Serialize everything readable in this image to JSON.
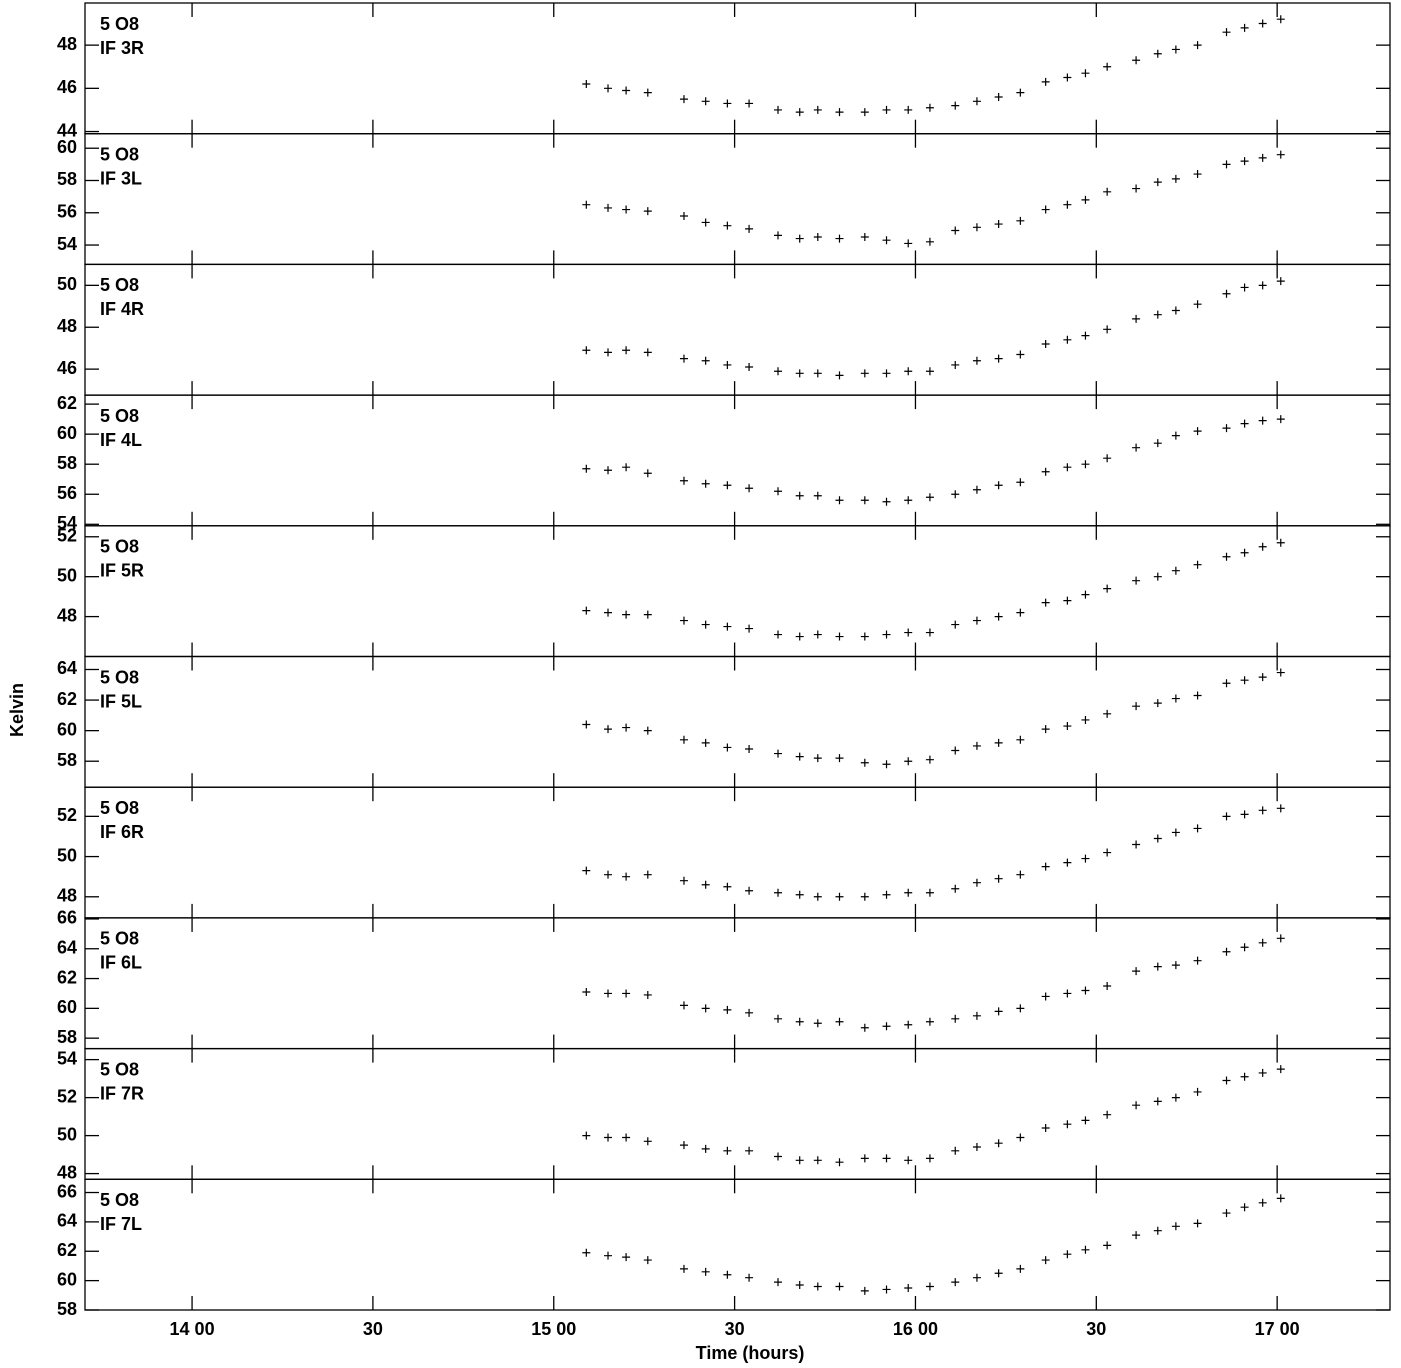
{
  "chart_data": {
    "type": "scatter",
    "xlabel": "Time (hours)",
    "ylabel": "Kelvin",
    "xlim": [
      13.704,
      17.312
    ],
    "xticks": [
      {
        "value": 14,
        "label": "14 00"
      },
      {
        "value": 14.5,
        "label": "30"
      },
      {
        "value": 15,
        "label": "15 00"
      },
      {
        "value": 15.5,
        "label": "30"
      },
      {
        "value": 16,
        "label": "16 00"
      },
      {
        "value": 16.5,
        "label": "30"
      },
      {
        "value": 17,
        "label": "17 00"
      }
    ],
    "x": [
      15.09,
      15.15,
      15.2,
      15.26,
      15.36,
      15.42,
      15.48,
      15.54,
      15.62,
      15.68,
      15.73,
      15.79,
      15.86,
      15.92,
      15.98,
      16.04,
      16.11,
      16.17,
      16.23,
      16.29,
      16.36,
      16.42,
      16.47,
      16.53,
      16.61,
      16.67,
      16.72,
      16.78,
      16.86,
      16.91,
      16.96,
      17.01
    ],
    "panels": [
      {
        "source": "5 O8",
        "name": "IF 3R",
        "ylim": [
          43.9,
          49.95
        ],
        "yticks": [
          44,
          46,
          48
        ],
        "values": [
          46.2,
          46.0,
          45.9,
          45.8,
          45.5,
          45.4,
          45.3,
          45.3,
          45.0,
          44.9,
          45.0,
          44.9,
          44.9,
          45.0,
          45.0,
          45.1,
          45.2,
          45.4,
          45.6,
          45.8,
          46.3,
          46.5,
          46.7,
          47.0,
          47.3,
          47.6,
          47.8,
          48.0,
          48.6,
          48.8,
          49.0,
          49.2
        ]
      },
      {
        "source": "5 O8",
        "name": "IF 3L",
        "ylim": [
          52.8,
          60.9
        ],
        "yticks": [
          54,
          56,
          58,
          60
        ],
        "values": [
          56.5,
          56.3,
          56.2,
          56.1,
          55.8,
          55.4,
          55.2,
          55.0,
          54.6,
          54.4,
          54.5,
          54.4,
          54.5,
          54.3,
          54.1,
          54.2,
          54.9,
          55.1,
          55.3,
          55.5,
          56.2,
          56.5,
          56.8,
          57.3,
          57.5,
          57.9,
          58.1,
          58.4,
          59.0,
          59.2,
          59.4,
          59.6
        ]
      },
      {
        "source": "5 O8",
        "name": "IF 4R",
        "ylim": [
          44.76,
          51.0
        ],
        "yticks": [
          46,
          48,
          50
        ],
        "values": [
          46.9,
          46.8,
          46.9,
          46.8,
          46.5,
          46.4,
          46.2,
          46.1,
          45.9,
          45.8,
          45.8,
          45.7,
          45.8,
          45.8,
          45.9,
          45.9,
          46.2,
          46.4,
          46.5,
          46.7,
          47.2,
          47.4,
          47.6,
          47.9,
          48.4,
          48.6,
          48.8,
          49.1,
          49.6,
          49.9,
          50.0,
          50.2
        ]
      },
      {
        "source": "5 O8",
        "name": "IF 4L",
        "ylim": [
          53.9,
          62.6
        ],
        "yticks": [
          54,
          56,
          58,
          60,
          62
        ],
        "values": [
          57.7,
          57.6,
          57.8,
          57.4,
          56.9,
          56.7,
          56.6,
          56.4,
          56.2,
          55.9,
          55.9,
          55.6,
          55.6,
          55.5,
          55.6,
          55.8,
          56.0,
          56.3,
          56.6,
          56.8,
          57.5,
          57.8,
          58.0,
          58.4,
          59.1,
          59.4,
          59.9,
          60.2,
          60.4,
          60.7,
          60.9,
          61.0
        ]
      },
      {
        "source": "5 O8",
        "name": "IF 5R",
        "ylim": [
          46.0,
          52.55
        ],
        "yticks": [
          48,
          50,
          52
        ],
        "values": [
          48.3,
          48.2,
          48.1,
          48.1,
          47.8,
          47.6,
          47.5,
          47.4,
          47.1,
          47.0,
          47.1,
          47.0,
          47.0,
          47.1,
          47.2,
          47.2,
          47.6,
          47.8,
          48.0,
          48.2,
          48.7,
          48.8,
          49.1,
          49.4,
          49.8,
          50.0,
          50.3,
          50.6,
          51.0,
          51.2,
          51.5,
          51.7
        ]
      },
      {
        "source": "5 O8",
        "name": "IF 5L",
        "ylim": [
          56.3,
          64.85
        ],
        "yticks": [
          58,
          60,
          62,
          64
        ],
        "values": [
          60.4,
          60.1,
          60.2,
          60.0,
          59.4,
          59.2,
          58.9,
          58.8,
          58.5,
          58.3,
          58.2,
          58.2,
          57.9,
          57.8,
          58.0,
          58.1,
          58.7,
          59.0,
          59.2,
          59.4,
          60.1,
          60.3,
          60.7,
          61.1,
          61.6,
          61.8,
          62.1,
          62.3,
          63.1,
          63.3,
          63.5,
          63.8
        ]
      },
      {
        "source": "5 O8",
        "name": "IF 6R",
        "ylim": [
          46.95,
          53.45
        ],
        "yticks": [
          48,
          50,
          52
        ],
        "values": [
          49.3,
          49.1,
          49.0,
          49.1,
          48.8,
          48.6,
          48.5,
          48.3,
          48.2,
          48.1,
          48.0,
          48.0,
          48.0,
          48.1,
          48.2,
          48.2,
          48.4,
          48.7,
          48.9,
          49.1,
          49.5,
          49.7,
          49.9,
          50.2,
          50.6,
          50.9,
          51.2,
          51.4,
          52.0,
          52.1,
          52.3,
          52.4
        ]
      },
      {
        "source": "5 O8",
        "name": "IF 6L",
        "ylim": [
          57.3,
          66.07
        ],
        "yticks": [
          58,
          60,
          62,
          64,
          66
        ],
        "values": [
          61.1,
          61.0,
          61.0,
          60.9,
          60.2,
          60.0,
          59.9,
          59.7,
          59.3,
          59.1,
          59.0,
          59.1,
          58.7,
          58.8,
          58.9,
          59.1,
          59.3,
          59.5,
          59.8,
          60.0,
          60.8,
          61.0,
          61.2,
          61.5,
          62.5,
          62.8,
          62.9,
          63.2,
          63.8,
          64.1,
          64.4,
          64.7
        ]
      },
      {
        "source": "5 O8",
        "name": "IF 7R",
        "ylim": [
          47.7,
          54.58
        ],
        "yticks": [
          48,
          50,
          52,
          54
        ],
        "values": [
          50.0,
          49.9,
          49.9,
          49.7,
          49.5,
          49.3,
          49.2,
          49.2,
          48.9,
          48.7,
          48.7,
          48.6,
          48.8,
          48.8,
          48.7,
          48.8,
          49.2,
          49.4,
          49.6,
          49.9,
          50.4,
          50.6,
          50.8,
          51.1,
          51.6,
          51.8,
          52.0,
          52.3,
          52.9,
          53.1,
          53.3,
          53.5
        ]
      },
      {
        "source": "5 O8",
        "name": "IF 7L",
        "ylim": [
          58.0,
          66.9
        ],
        "yticks": [
          58,
          60,
          62,
          64,
          66
        ],
        "values": [
          61.9,
          61.7,
          61.6,
          61.4,
          60.8,
          60.6,
          60.4,
          60.2,
          59.9,
          59.7,
          59.6,
          59.6,
          59.3,
          59.4,
          59.5,
          59.6,
          59.9,
          60.2,
          60.5,
          60.8,
          61.4,
          61.8,
          62.1,
          62.4,
          63.1,
          63.4,
          63.7,
          63.9,
          64.6,
          65.0,
          65.3,
          65.6
        ]
      }
    ]
  }
}
